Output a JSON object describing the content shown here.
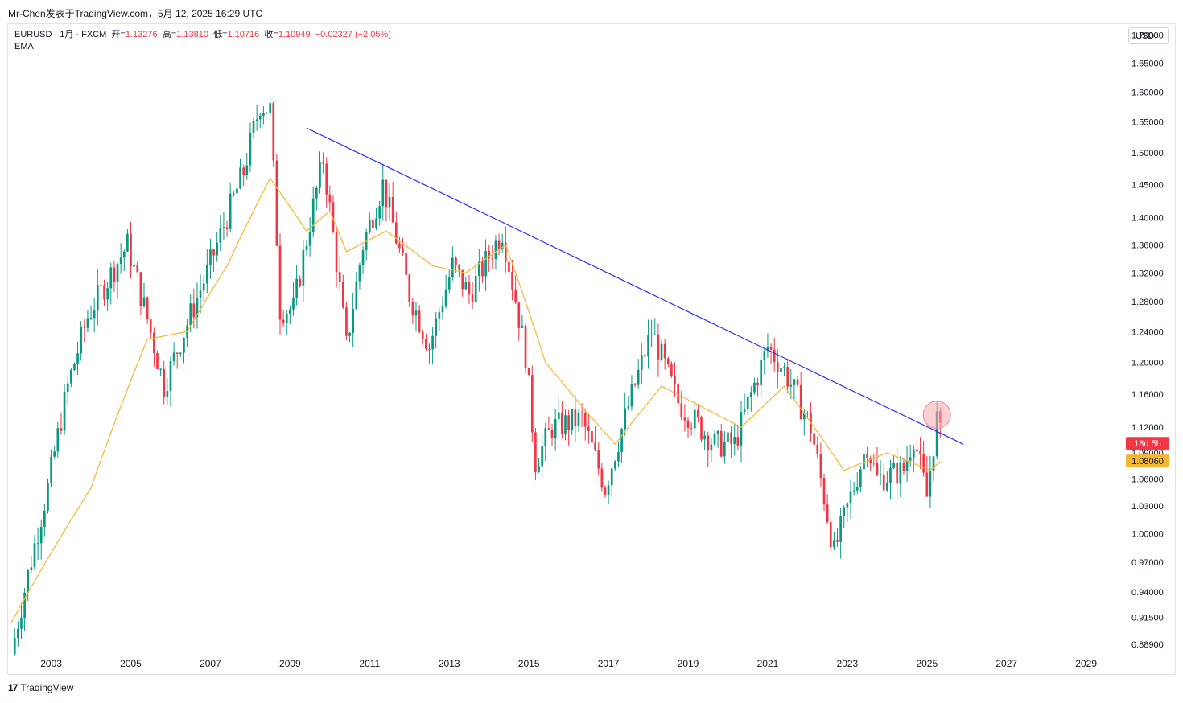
{
  "header": {
    "source_line": "Mr-Chen发表于TradingView.com，5月 12, 2025 16:29 UTC"
  },
  "legend": {
    "symbol_line": "EURUSD · 1月 · FXCM",
    "open_label": "开=",
    "open_value": "1.13276",
    "high_label": "高=",
    "high_value": "1.13810",
    "low_label": "低=",
    "low_value": "1.10716",
    "close_label": "收=",
    "close_value": "1.10949",
    "change_value": "−0.02327 (−2.05%)",
    "indicator": "EMA"
  },
  "currency_button": "USD",
  "footer": {
    "logo_glyph": "17",
    "brand": "TradingView"
  },
  "colors": {
    "up": "#089981",
    "down": "#f23645",
    "ema": "#f5b632",
    "trendline": "#2d2df5",
    "badge_red": "#f23645",
    "badge_yellow": "#f5b632",
    "highlight": "#f7a8ae"
  },
  "chart_data": {
    "type": "candlestick",
    "title": "EURUSD · 1月 · FXCM",
    "xlabel": "",
    "ylabel": "",
    "x_ticks": [
      "2003",
      "2005",
      "2007",
      "2009",
      "2011",
      "2013",
      "2015",
      "2017",
      "2019",
      "2021",
      "2023",
      "2025",
      "2027",
      "2029"
    ],
    "y_ticks": [
      "1.70000",
      "1.65000",
      "1.60000",
      "1.55000",
      "1.50000",
      "1.45000",
      "1.40000",
      "1.36000",
      "1.32000",
      "1.28000",
      "1.24000",
      "1.20000",
      "1.16000",
      "1.12000",
      "1.09000",
      "1.06000",
      "1.03000",
      "1.00000",
      "0.97000",
      "0.94000",
      "0.91500",
      "0.88900"
    ],
    "price_badges": [
      {
        "label": "18d 5h",
        "color": "red"
      },
      {
        "label": "1.08060",
        "color": "yellow"
      }
    ],
    "series_price_keypoints": [
      {
        "date": "2002-01",
        "price": 0.88
      },
      {
        "date": "2002-12",
        "price": 1.05
      },
      {
        "date": "2003-06",
        "price": 1.17
      },
      {
        "date": "2003-12",
        "price": 1.26
      },
      {
        "date": "2004-12",
        "price": 1.36
      },
      {
        "date": "2005-11",
        "price": 1.17
      },
      {
        "date": "2006-12",
        "price": 1.32
      },
      {
        "date": "2007-11",
        "price": 1.47
      },
      {
        "date": "2008-04",
        "price": 1.58
      },
      {
        "date": "2008-07",
        "price": 1.57
      },
      {
        "date": "2008-10",
        "price": 1.27
      },
      {
        "date": "2009-02",
        "price": 1.27
      },
      {
        "date": "2009-11",
        "price": 1.49
      },
      {
        "date": "2010-06",
        "price": 1.22
      },
      {
        "date": "2010-11",
        "price": 1.36
      },
      {
        "date": "2011-05",
        "price": 1.45
      },
      {
        "date": "2012-01",
        "price": 1.29
      },
      {
        "date": "2012-07",
        "price": 1.22
      },
      {
        "date": "2013-02",
        "price": 1.33
      },
      {
        "date": "2013-07",
        "price": 1.29
      },
      {
        "date": "2014-05",
        "price": 1.38
      },
      {
        "date": "2014-12",
        "price": 1.21
      },
      {
        "date": "2015-03",
        "price": 1.08
      },
      {
        "date": "2015-08",
        "price": 1.12
      },
      {
        "date": "2016-05",
        "price": 1.13
      },
      {
        "date": "2016-12",
        "price": 1.05
      },
      {
        "date": "2018-02",
        "price": 1.24
      },
      {
        "date": "2018-10",
        "price": 1.15
      },
      {
        "date": "2019-09",
        "price": 1.1
      },
      {
        "date": "2020-03",
        "price": 1.1
      },
      {
        "date": "2021-01",
        "price": 1.22
      },
      {
        "date": "2021-06",
        "price": 1.19
      },
      {
        "date": "2022-02",
        "price": 1.12
      },
      {
        "date": "2022-09",
        "price": 0.98
      },
      {
        "date": "2023-07",
        "price": 1.1
      },
      {
        "date": "2023-10",
        "price": 1.06
      },
      {
        "date": "2024-06",
        "price": 1.07
      },
      {
        "date": "2024-09",
        "price": 1.11
      },
      {
        "date": "2025-01",
        "price": 1.04
      },
      {
        "date": "2025-04",
        "price": 1.13
      },
      {
        "date": "2025-05",
        "price": 1.11
      }
    ],
    "ema_keypoints": [
      {
        "date": "2002-01",
        "price": 0.91
      },
      {
        "date": "2004-01",
        "price": 1.05
      },
      {
        "date": "2005-06",
        "price": 1.23
      },
      {
        "date": "2006-06",
        "price": 1.24
      },
      {
        "date": "2007-06",
        "price": 1.33
      },
      {
        "date": "2008-07",
        "price": 1.46
      },
      {
        "date": "2009-06",
        "price": 1.38
      },
      {
        "date": "2010-01",
        "price": 1.41
      },
      {
        "date": "2010-06",
        "price": 1.35
      },
      {
        "date": "2011-06",
        "price": 1.38
      },
      {
        "date": "2012-08",
        "price": 1.33
      },
      {
        "date": "2013-06",
        "price": 1.32
      },
      {
        "date": "2014-06",
        "price": 1.36
      },
      {
        "date": "2015-06",
        "price": 1.2
      },
      {
        "date": "2016-06",
        "price": 1.14
      },
      {
        "date": "2017-03",
        "price": 1.1
      },
      {
        "date": "2018-05",
        "price": 1.17
      },
      {
        "date": "2020-05",
        "price": 1.12
      },
      {
        "date": "2021-06",
        "price": 1.17
      },
      {
        "date": "2022-12",
        "price": 1.07
      },
      {
        "date": "2024-01",
        "price": 1.09
      },
      {
        "date": "2025-02",
        "price": 1.07
      },
      {
        "date": "2025-05",
        "price": 1.08
      }
    ],
    "trendline": {
      "start": {
        "date": "2009-06",
        "price": 1.54
      },
      "end": {
        "date": "2025-12",
        "price": 1.1
      }
    },
    "highlight_circle": {
      "date": "2025-04",
      "price": 1.135
    },
    "y_scale": "log",
    "ylim": [
      0.88,
      1.72
    ],
    "xlim": [
      "2001-12",
      "2029-12"
    ]
  }
}
